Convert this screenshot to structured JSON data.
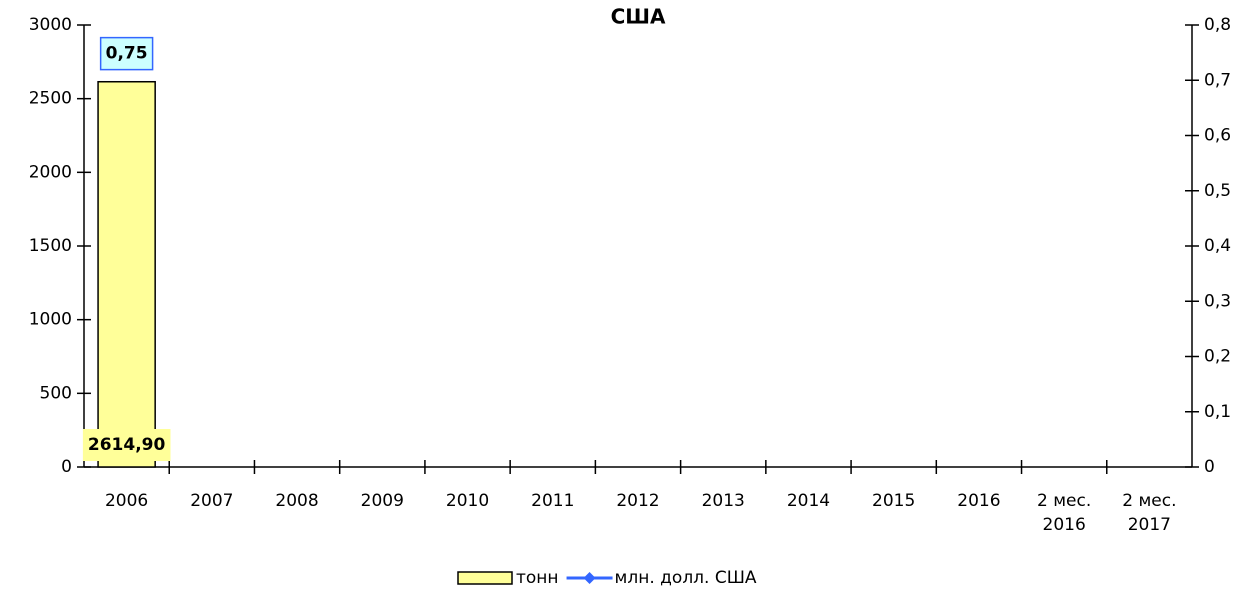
{
  "chart_data": {
    "type": "bar_line",
    "title": "США",
    "categories": [
      "2006",
      "2007",
      "2008",
      "2009",
      "2010",
      "2011",
      "2012",
      "2013",
      "2014",
      "2015",
      "2016",
      "2 мес. 2016",
      "2 мес. 2017"
    ],
    "series": [
      {
        "name": "тонн",
        "type": "bar",
        "color": "#ffff99",
        "values": [
          2614.9,
          null,
          null,
          null,
          null,
          null,
          null,
          null,
          null,
          null,
          null,
          null,
          null
        ],
        "value_labels": [
          "2614,90",
          null,
          null,
          null,
          null,
          null,
          null,
          null,
          null,
          null,
          null,
          null,
          null
        ]
      },
      {
        "name": "млн. долл. США",
        "type": "line",
        "axis": "y2",
        "color": "#3366ff",
        "values": [
          0.75,
          null,
          null,
          null,
          null,
          null,
          null,
          null,
          null,
          null,
          null,
          null,
          null
        ],
        "value_labels": [
          "0,75",
          null,
          null,
          null,
          null,
          null,
          null,
          null,
          null,
          null,
          null,
          null,
          null
        ]
      }
    ],
    "ylim": [
      0,
      3000
    ],
    "yticks": [
      0,
      500,
      1000,
      1500,
      2000,
      2500,
      3000
    ],
    "y2lim": [
      0,
      0.8
    ],
    "y2ticks": [
      0,
      {
        "value": 0.1,
        "label": "0,1"
      },
      {
        "value": 0.2,
        "label": "0,2"
      },
      {
        "value": 0.3,
        "label": "0,3"
      },
      {
        "value": 0.4,
        "label": "0,4"
      },
      {
        "value": 0.5,
        "label": "0,5"
      },
      {
        "value": 0.6,
        "label": "0,6"
      },
      {
        "value": 0.7,
        "label": "0,7"
      },
      {
        "value": 0.8,
        "label": "0,8"
      }
    ],
    "legend": "bottom"
  }
}
